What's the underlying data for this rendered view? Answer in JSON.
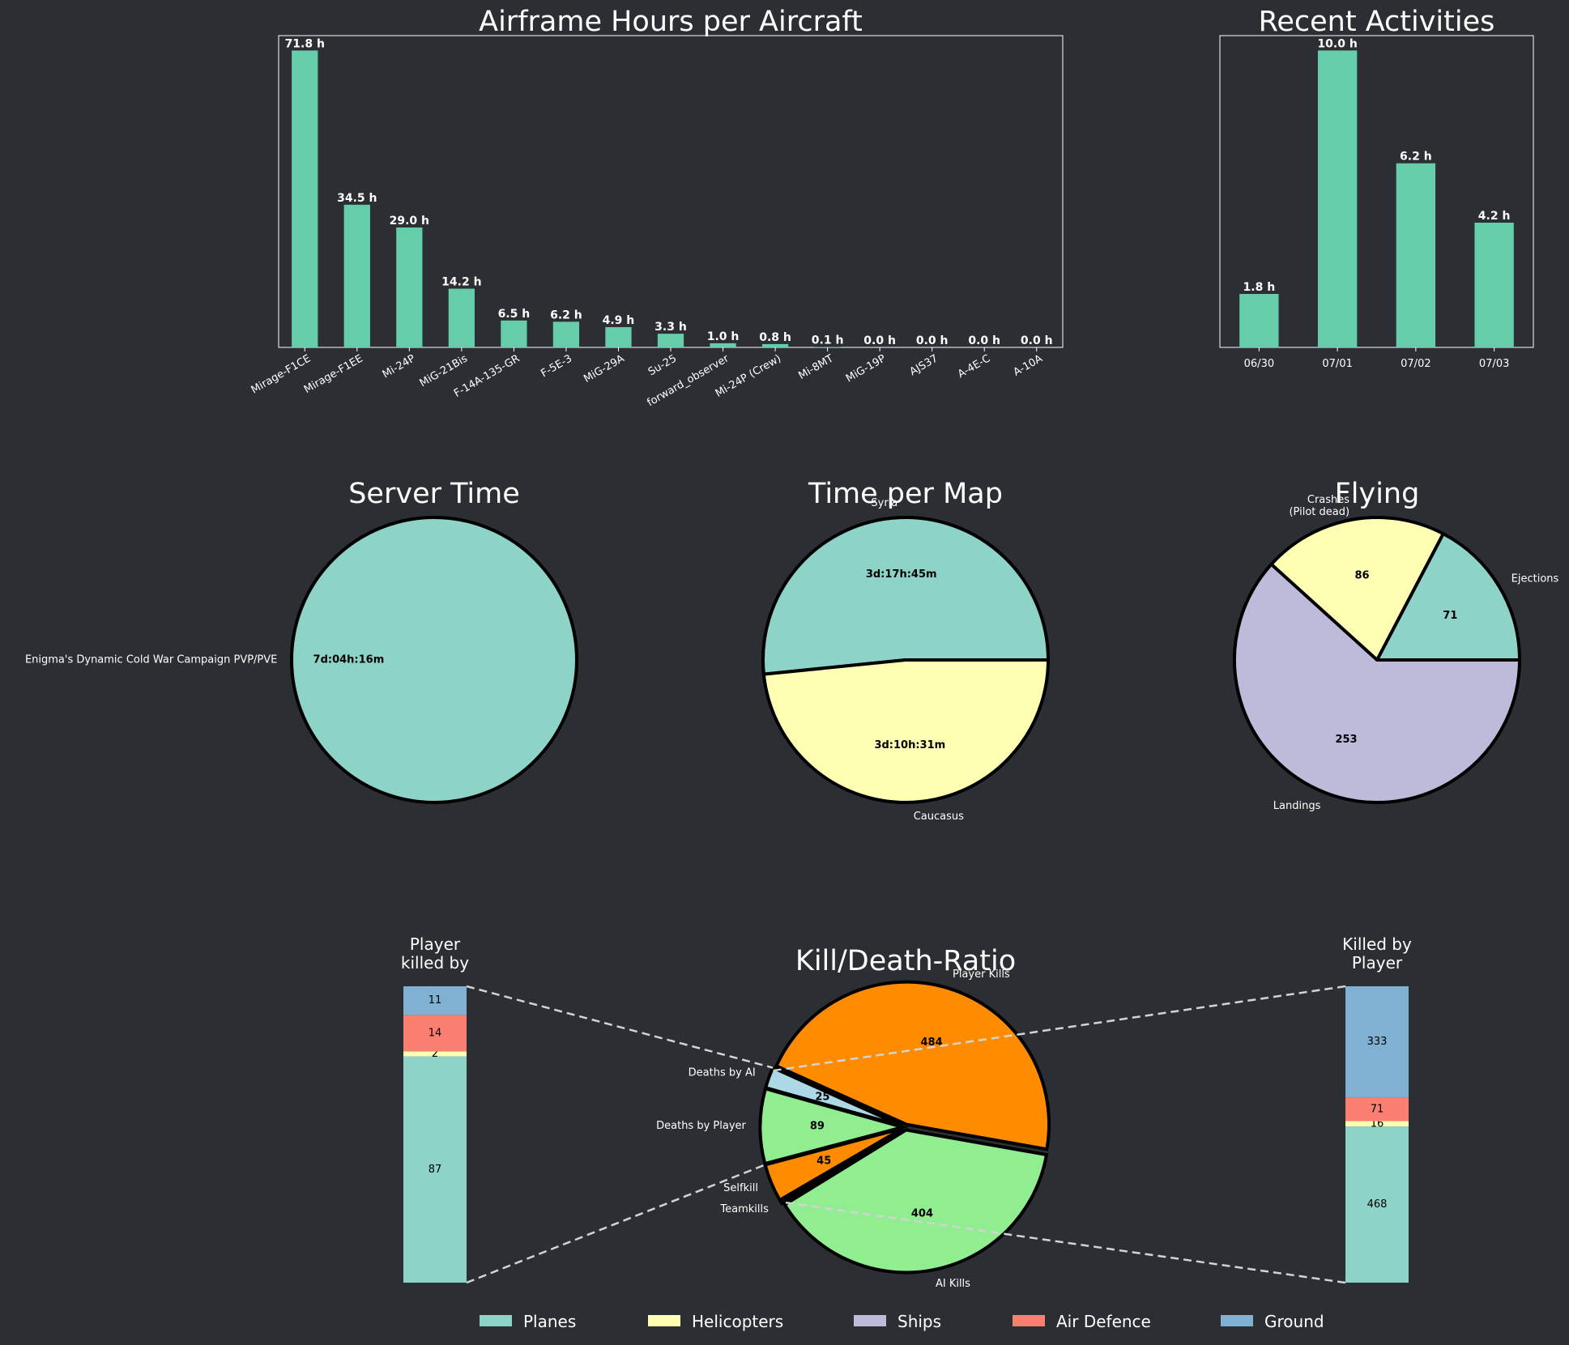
{
  "colors": {
    "background": "#2b2e33",
    "bar": "#66cdaa",
    "text": "#ffffff",
    "dark_text": "#000000",
    "planes": "#8dd3c7",
    "helicopters": "#ffffb3",
    "ships": "#bebada",
    "air_defence": "#fb8072",
    "ground": "#80b1d3",
    "orange": "#ff8c00",
    "light_green": "#90ee90",
    "light_blue": "#add8e6",
    "connector": "#d3d3d3"
  },
  "chart_data": [
    {
      "id": "airframe",
      "type": "bar",
      "title": "Airframe Hours per Aircraft",
      "categories": [
        "Mirage-F1CE",
        "Mirage-F1EE",
        "Mi-24P",
        "MiG-21Bis",
        "F-14A-135-GR",
        "F-5E-3",
        "MiG-29A",
        "Su-25",
        "forward_observer",
        "Mi-24P (Crew)",
        "Mi-8MT",
        "MiG-19P",
        "AJS37",
        "A-4E-C",
        "A-10A"
      ],
      "values": [
        71.8,
        34.5,
        29.0,
        14.2,
        6.5,
        6.2,
        4.9,
        3.3,
        1.0,
        0.8,
        0.1,
        0.0,
        0.0,
        0.0,
        0.0
      ],
      "value_labels": [
        "71.8 h",
        "34.5 h",
        "29.0 h",
        "14.2 h",
        "6.5 h",
        "6.2 h",
        "4.9 h",
        "3.3 h",
        "1.0 h",
        "0.8 h",
        "0.1 h",
        "0.0 h",
        "0.0 h",
        "0.0 h",
        "0.0 h"
      ],
      "ylim": [
        0,
        75.4
      ],
      "grid": false
    },
    {
      "id": "recent",
      "type": "bar",
      "title": "Recent Activities",
      "categories": [
        "06/30",
        "07/01",
        "07/02",
        "07/03"
      ],
      "values": [
        1.8,
        10.0,
        6.2,
        4.2
      ],
      "value_labels": [
        "1.8 h",
        "10.0 h",
        "6.2 h",
        "4.2 h"
      ],
      "ylim": [
        0,
        10.5
      ],
      "grid": false
    },
    {
      "id": "server_time",
      "type": "pie",
      "title": "Server Time",
      "slices": [
        {
          "label": "Enigma's Dynamic Cold War Campaign PVP/PVE",
          "value": 1.0,
          "value_label": "7d:04h:16m",
          "color": "#8dd3c7"
        }
      ]
    },
    {
      "id": "time_per_map",
      "type": "pie",
      "title": "Time per Map",
      "slices": [
        {
          "label": "Syria",
          "value": 0.516,
          "value_label": "3d:17h:45m",
          "color": "#8dd3c7"
        },
        {
          "label": "Caucasus",
          "value": 0.484,
          "value_label": "3d:10h:31m",
          "color": "#ffffb3"
        }
      ]
    },
    {
      "id": "flying",
      "type": "pie",
      "title": "Flying",
      "slices": [
        {
          "label": "Ejections",
          "value": 71,
          "value_label": "71",
          "color": "#8dd3c7"
        },
        {
          "label": "Crashes\n(Pilot dead)",
          "value": 86,
          "value_label": "86",
          "color": "#ffffb3"
        },
        {
          "label": "Landings",
          "value": 253,
          "value_label": "253",
          "color": "#bebada"
        }
      ]
    },
    {
      "id": "kdr",
      "type": "pie",
      "title": "Kill/Death-Ratio",
      "slices": [
        {
          "label": "Player Kills",
          "value": 484,
          "value_label": "484",
          "color": "#ff8c00"
        },
        {
          "label": "Deaths by AI",
          "value": 25,
          "value_label": "25",
          "color": "#add8e6"
        },
        {
          "label": "Deaths by Player",
          "value": 89,
          "value_label": "89",
          "color": "#90ee90"
        },
        {
          "label": "Selfkill",
          "value": 45,
          "value_label": "45",
          "color": "#ff8c00"
        },
        {
          "label": "Teamkills",
          "value": 4,
          "value_label": "",
          "color": "#add8e6"
        },
        {
          "label": "AI Kills",
          "value": 404,
          "value_label": "404",
          "color": "#90ee90"
        }
      ]
    },
    {
      "id": "player_killed_by",
      "type": "bar",
      "title": "Player\nkilled by",
      "stacked": true,
      "series": [
        {
          "name": "Planes",
          "value": 87,
          "label": "87",
          "color": "#8dd3c7"
        },
        {
          "name": "Helicopters",
          "value": 2,
          "label": "2",
          "color": "#ffffb3"
        },
        {
          "name": "Air Defence",
          "value": 14,
          "label": "14",
          "color": "#fb8072"
        },
        {
          "name": "Ground",
          "value": 11,
          "label": "11",
          "color": "#80b1d3"
        }
      ]
    },
    {
      "id": "killed_by_player",
      "type": "bar",
      "title": "Killed by\nPlayer",
      "stacked": true,
      "series": [
        {
          "name": "Planes",
          "value": 468,
          "label": "468",
          "color": "#8dd3c7"
        },
        {
          "name": "Helicopters",
          "value": 16,
          "label": "16",
          "color": "#ffffb3"
        },
        {
          "name": "Air Defence",
          "value": 71,
          "label": "71",
          "color": "#fb8072"
        },
        {
          "name": "Ground",
          "value": 333,
          "label": "333",
          "color": "#80b1d3"
        }
      ]
    }
  ],
  "legend": [
    {
      "label": "Planes",
      "color": "#8dd3c7"
    },
    {
      "label": "Helicopters",
      "color": "#ffffb3"
    },
    {
      "label": "Ships",
      "color": "#bebada"
    },
    {
      "label": "Air Defence",
      "color": "#fb8072"
    },
    {
      "label": "Ground",
      "color": "#80b1d3"
    }
  ]
}
